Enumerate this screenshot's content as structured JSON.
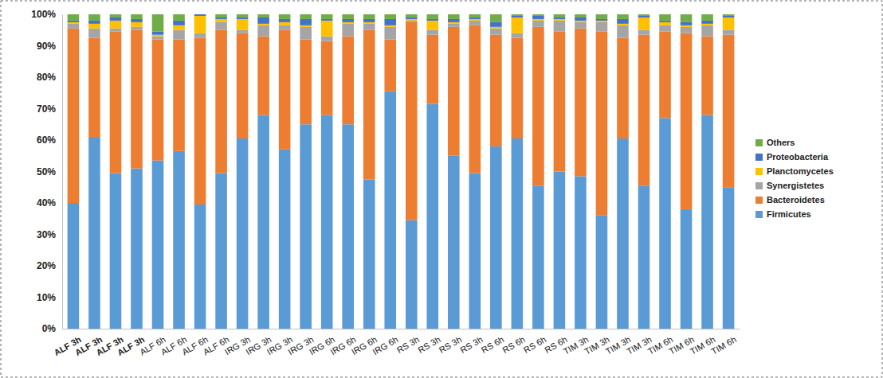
{
  "chart_data": {
    "type": "bar",
    "stacked": true,
    "legend": "right",
    "categories": [
      "ALF 3h",
      "ALF 3h",
      "ALF 3h",
      "ALF 3h",
      "ALF 6h",
      "ALF 6h",
      "ALF 6h",
      "ALF 6h",
      "IRG 3h",
      "IRG 3h",
      "IRG 3h",
      "IRG 3h",
      "IRG 6h",
      "IRG 6h",
      "IRG 6h",
      "IRG 6h",
      "RS 3h",
      "RS 3h",
      "RS 3h",
      "RS 3h",
      "RS 6h",
      "RS 6h",
      "RS 6h",
      "RS 6h",
      "TIM 3h",
      "TIM 3h",
      "TIM 3h",
      "TIM 3h",
      "TIM 6h",
      "TIM 6h",
      "TIM 6h",
      "TIM 6h"
    ],
    "ylim": [
      0,
      100
    ],
    "yticks": [
      {
        "value": 0,
        "label": "0%"
      },
      {
        "value": 10,
        "label": "10%"
      },
      {
        "value": 20,
        "label": "20%"
      },
      {
        "value": 30,
        "label": "30%"
      },
      {
        "value": 40,
        "label": "40%"
      },
      {
        "value": 50,
        "label": "50%"
      },
      {
        "value": 60,
        "label": "60%"
      },
      {
        "value": 70,
        "label": "70%"
      },
      {
        "value": 80,
        "label": "80%"
      },
      {
        "value": 90,
        "label": "90%"
      },
      {
        "value": 100,
        "label": "100%"
      }
    ],
    "series": [
      {
        "name": "Firmicutes",
        "color": "#5b9bd5",
        "values": [
          40,
          61,
          49.5,
          51,
          53.5,
          56.5,
          39.5,
          49.5,
          60.5,
          68,
          57,
          65,
          68,
          65,
          47.5,
          75.5,
          34.5,
          71.5,
          55,
          49.5,
          58,
          60.5,
          45.5,
          50,
          48.5,
          36,
          60.5,
          45.5,
          67,
          38,
          68,
          45
        ]
      },
      {
        "name": "Bacteroidetes",
        "color": "#ed7d31",
        "values": [
          55.5,
          31.5,
          45,
          44,
          38.5,
          35.5,
          53,
          45.5,
          33.5,
          25,
          38,
          27,
          23.5,
          28,
          47.5,
          16.5,
          63,
          22,
          41,
          47,
          35.5,
          32,
          50.5,
          44.5,
          47,
          58.5,
          32,
          48,
          27.5,
          56,
          25,
          48.5
        ]
      },
      {
        "name": "Synergistetes",
        "color": "#a5a5a5",
        "values": [
          1.5,
          3,
          1,
          1,
          1,
          3,
          1.5,
          2.5,
          1,
          3.5,
          1.5,
          4,
          1.5,
          4,
          2,
          4,
          0.5,
          1.5,
          1,
          1.5,
          2,
          1.5,
          2,
          3.5,
          2,
          3,
          4,
          1.5,
          2,
          2,
          3.5,
          1.5
        ]
      },
      {
        "name": "Planctomycetes",
        "color": "#ffc000",
        "values": [
          0.5,
          1.5,
          2.5,
          1.5,
          0.5,
          1.5,
          5.5,
          1,
          3.5,
          0.5,
          1,
          0.5,
          5,
          0.5,
          0.5,
          0.5,
          0.5,
          3,
          0.5,
          0.5,
          0.5,
          5,
          0.5,
          0.5,
          0.5,
          0.5,
          0.5,
          4,
          1,
          0.5,
          0.5,
          4
        ]
      },
      {
        "name": "Proteobacteria",
        "color": "#4472c4",
        "values": [
          0.5,
          1,
          1,
          1,
          1,
          1.5,
          0.5,
          0.5,
          0.5,
          2,
          1,
          2,
          0.5,
          1,
          1,
          2,
          0.5,
          0.5,
          1,
          0.5,
          1.5,
          0.5,
          1,
          0.5,
          1,
          0.5,
          1.5,
          0.5,
          0.5,
          1,
          1,
          0.5
        ]
      },
      {
        "name": "Others",
        "color": "#70ad47",
        "values": [
          2,
          2,
          1,
          1.5,
          5.5,
          2,
          0,
          1,
          1,
          1,
          1.5,
          1.5,
          1.5,
          1.5,
          1.5,
          1.5,
          1,
          1.5,
          1.5,
          1,
          2.5,
          0.5,
          0.5,
          1,
          1,
          1.5,
          1.5,
          0.5,
          2,
          2.5,
          2,
          0.5
        ]
      }
    ]
  }
}
